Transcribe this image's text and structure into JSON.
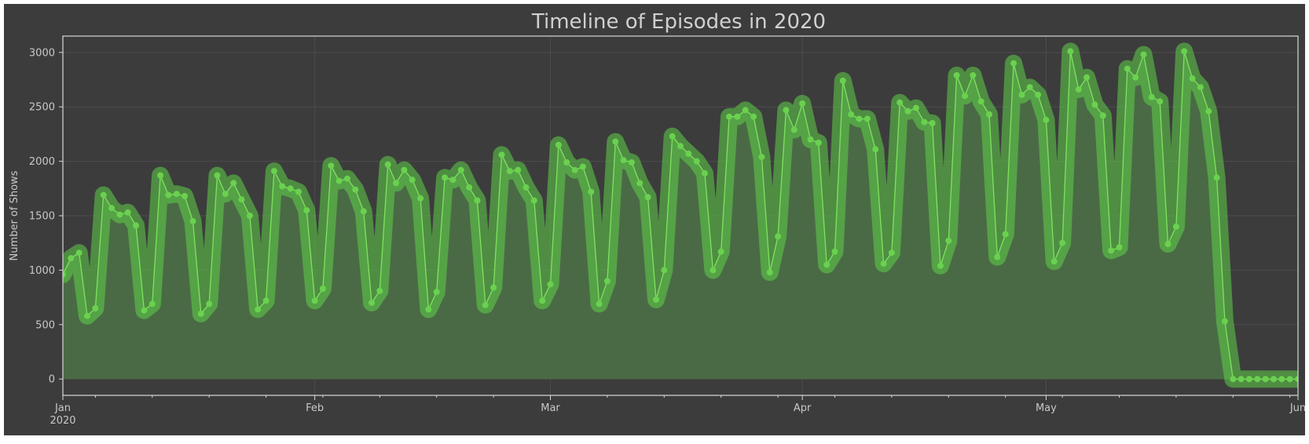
{
  "chart_data": {
    "type": "area",
    "title": "Timeline of Episodes in 2020",
    "xlabel": "",
    "ylabel": "Number of Shows",
    "x_range": [
      "2020-01-01",
      "2020-06-01"
    ],
    "ylim": [
      -150,
      3150
    ],
    "y_ticks": [
      0,
      500,
      1000,
      1500,
      2000,
      2500,
      3000
    ],
    "x_ticks": [
      {
        "date": "2020-01-01",
        "label": "Jan",
        "sublabel": "2020"
      },
      {
        "date": "2020-02-01",
        "label": "Feb",
        "sublabel": ""
      },
      {
        "date": "2020-03-01",
        "label": "Mar",
        "sublabel": ""
      },
      {
        "date": "2020-04-01",
        "label": "Apr",
        "sublabel": ""
      },
      {
        "date": "2020-05-01",
        "label": "May",
        "sublabel": ""
      },
      {
        "date": "2020-06-01",
        "label": "Jun",
        "sublabel": ""
      }
    ],
    "grid": true,
    "colors": {
      "background": "#3c3c3c",
      "line": "#7ee35e",
      "marker": "#6ad14f",
      "glow": "#5fcf48",
      "fill": "#4a6a45",
      "grid": "#4c4c4c",
      "axis": "#d8d8d8",
      "text": "#c8c8c8"
    },
    "series": [
      {
        "start_date": "2020-01-01",
        "step": "1 day",
        "values": [
          960,
          1110,
          1160,
          580,
          650,
          1690,
          1570,
          1510,
          1530,
          1410,
          630,
          690,
          1870,
          1690,
          1700,
          1680,
          1450,
          600,
          690,
          1870,
          1700,
          1800,
          1650,
          1500,
          640,
          720,
          1910,
          1770,
          1750,
          1720,
          1550,
          720,
          830,
          1960,
          1820,
          1840,
          1740,
          1540,
          700,
          810,
          1970,
          1800,
          1920,
          1830,
          1660,
          640,
          800,
          1850,
          1830,
          1920,
          1760,
          1640,
          680,
          840,
          2060,
          1910,
          1920,
          1760,
          1640,
          720,
          870,
          2150,
          1990,
          1920,
          1950,
          1720,
          690,
          900,
          2180,
          2010,
          1990,
          1800,
          1670,
          730,
          1000,
          2230,
          2140,
          2070,
          2000,
          1890,
          1000,
          1170,
          2410,
          2410,
          2470,
          2410,
          2040,
          980,
          1310,
          2470,
          2290,
          2530,
          2200,
          2170,
          1050,
          1170,
          2740,
          2430,
          2390,
          2390,
          2110,
          1060,
          1160,
          2540,
          2460,
          2490,
          2360,
          2350,
          1040,
          1270,
          2790,
          2600,
          2790,
          2550,
          2430,
          1120,
          1330,
          2900,
          2610,
          2680,
          2610,
          2380,
          1080,
          1250,
          3010,
          2660,
          2770,
          2520,
          2420,
          1180,
          1210,
          2850,
          2770,
          2980,
          2590,
          2550,
          1240,
          1400,
          3010,
          2760,
          2680,
          2460,
          1850,
          530,
          0,
          0,
          0,
          0,
          0,
          0,
          0,
          0,
          0,
          0,
          0,
          0,
          0
        ]
      }
    ]
  }
}
